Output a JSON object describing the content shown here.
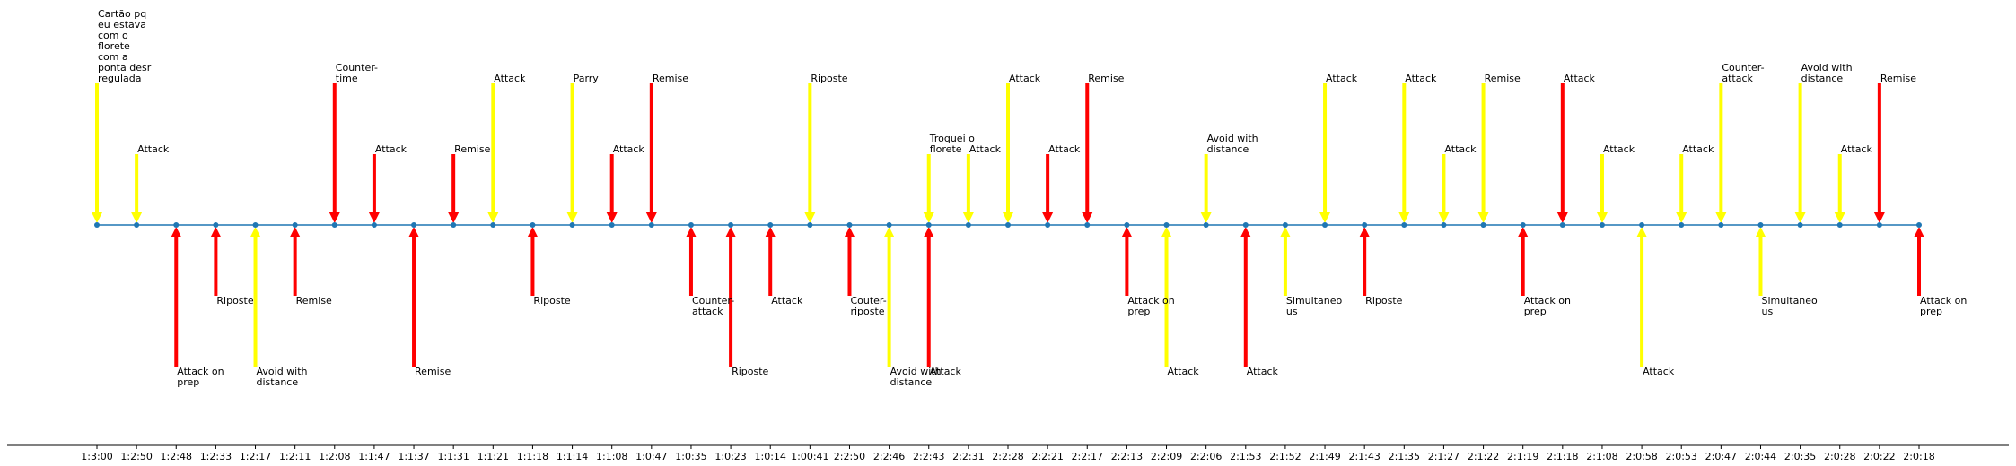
{
  "chart_data": {
    "type": "timeline",
    "title": "",
    "xlabel": "",
    "ylabel": "",
    "ylim": [
      -3,
      2.8
    ],
    "grid": false,
    "colors": {
      "timeline": "#1f77b4",
      "red": "#ff0000",
      "yellow": "#ffff00",
      "axis": "#000000"
    },
    "events": [
      {
        "time": "1:3:00",
        "color": "yellow",
        "level": 2.0,
        "label": [
          "Cartão pq",
          "eu estava",
          "com o",
          "florete",
          "com a",
          "ponta desr",
          "regulada"
        ]
      },
      {
        "time": "1:2:50",
        "color": "yellow",
        "level": 1.0,
        "label": [
          "Attack"
        ]
      },
      {
        "time": "1:2:48",
        "color": "red",
        "level": -2.0,
        "label": [
          "Attack on",
          "prep"
        ]
      },
      {
        "time": "1:2:33",
        "color": "red",
        "level": -1.0,
        "label": [
          "Riposte"
        ]
      },
      {
        "time": "1:2:17",
        "color": "yellow",
        "level": -2.0,
        "label": [
          "Avoid with",
          "distance"
        ]
      },
      {
        "time": "1:2:11",
        "color": "red",
        "level": -1.0,
        "label": [
          "Remise"
        ]
      },
      {
        "time": "1:2:08",
        "color": "red",
        "level": 2.0,
        "label": [
          "Counter-",
          "time"
        ]
      },
      {
        "time": "1:1:47",
        "color": "red",
        "level": 1.0,
        "label": [
          "Attack"
        ]
      },
      {
        "time": "1:1:37",
        "color": "red",
        "level": -2.0,
        "label": [
          "Remise"
        ]
      },
      {
        "time": "1:1:31",
        "color": "red",
        "level": 1.0,
        "label": [
          "Remise"
        ]
      },
      {
        "time": "1:1:21",
        "color": "yellow",
        "level": 2.0,
        "label": [
          "Attack"
        ]
      },
      {
        "time": "1:1:18",
        "color": "red",
        "level": -1.0,
        "label": [
          "Riposte"
        ]
      },
      {
        "time": "1:1:14",
        "color": "yellow",
        "level": 2.0,
        "label": [
          "Parry"
        ]
      },
      {
        "time": "1:1:08",
        "color": "red",
        "level": 1.0,
        "label": [
          "Attack"
        ]
      },
      {
        "time": "1:0:47",
        "color": "red",
        "level": 2.0,
        "label": [
          "Remise"
        ]
      },
      {
        "time": "1:0:35",
        "color": "red",
        "level": -1.0,
        "label": [
          "Counter-",
          "attack"
        ]
      },
      {
        "time": "1:0:23",
        "color": "red",
        "level": -2.0,
        "label": [
          "Riposte"
        ]
      },
      {
        "time": "1:0:14",
        "color": "red",
        "level": -1.0,
        "label": [
          "Attack"
        ]
      },
      {
        "time": "1:00:41",
        "color": "yellow",
        "level": 2.0,
        "label": [
          "Riposte"
        ]
      },
      {
        "time": "2:2:50",
        "color": "red",
        "level": -1.0,
        "label": [
          "Couter-",
          "riposte"
        ]
      },
      {
        "time": "2:2:46",
        "color": "yellow",
        "level": -2.0,
        "label": [
          "Avoid with",
          "distance"
        ]
      },
      {
        "time": "2:2:43",
        "color": "yellow",
        "level": 1.0,
        "label": [
          "Troquei o",
          "florete"
        ]
      },
      {
        "time": "2:2:43",
        "color": "red",
        "level": -2.0,
        "label": [
          "Attack"
        ]
      },
      {
        "time": "2:2:31",
        "color": "yellow",
        "level": 1.0,
        "label": [
          "Attack"
        ]
      },
      {
        "time": "2:2:28",
        "color": "yellow",
        "level": 2.0,
        "label": [
          "Attack"
        ]
      },
      {
        "time": "2:2:21",
        "color": "red",
        "level": 1.0,
        "label": [
          "Attack"
        ]
      },
      {
        "time": "2:2:17",
        "color": "red",
        "level": 2.0,
        "label": [
          "Remise"
        ]
      },
      {
        "time": "2:2:13",
        "color": "red",
        "level": -1.0,
        "label": [
          "Attack on",
          "prep"
        ]
      },
      {
        "time": "2:2:09",
        "color": "yellow",
        "level": -2.0,
        "label": [
          "Attack"
        ]
      },
      {
        "time": "2:2:06",
        "color": "yellow",
        "level": 1.0,
        "label": [
          "Avoid with",
          "distance"
        ]
      },
      {
        "time": "2:1:53",
        "color": "red",
        "level": -2.0,
        "label": [
          "Attack"
        ]
      },
      {
        "time": "2:1:52",
        "color": "yellow",
        "level": -1.0,
        "label": [
          "Simultaneo",
          "us"
        ]
      },
      {
        "time": "2:1:49",
        "color": "yellow",
        "level": 2.0,
        "label": [
          "Attack"
        ]
      },
      {
        "time": "2:1:43",
        "color": "red",
        "level": -1.0,
        "label": [
          "Riposte"
        ]
      },
      {
        "time": "2:1:35",
        "color": "yellow",
        "level": 2.0,
        "label": [
          "Attack"
        ]
      },
      {
        "time": "2:1:27",
        "color": "yellow",
        "level": 1.0,
        "label": [
          "Attack"
        ]
      },
      {
        "time": "2:1:22",
        "color": "yellow",
        "level": 2.0,
        "label": [
          "Remise"
        ]
      },
      {
        "time": "2:1:19",
        "color": "red",
        "level": -1.0,
        "label": [
          "Attack on",
          "prep"
        ]
      },
      {
        "time": "2:1:18",
        "color": "red",
        "level": 2.0,
        "label": [
          "Attack"
        ]
      },
      {
        "time": "2:1:08",
        "color": "yellow",
        "level": 1.0,
        "label": [
          "Attack"
        ]
      },
      {
        "time": "2:0:58",
        "color": "yellow",
        "level": -2.0,
        "label": [
          "Attack"
        ]
      },
      {
        "time": "2:0:53",
        "color": "yellow",
        "level": 1.0,
        "label": [
          "Attack"
        ]
      },
      {
        "time": "2:0:47",
        "color": "yellow",
        "level": 2.0,
        "label": [
          "Counter-",
          "attack"
        ]
      },
      {
        "time": "2:0:44",
        "color": "yellow",
        "level": -1.0,
        "label": [
          "Simultaneo",
          "us"
        ]
      },
      {
        "time": "2:0:35",
        "color": "yellow",
        "level": 2.0,
        "label": [
          "Avoid with",
          "distance"
        ]
      },
      {
        "time": "2:0:28",
        "color": "yellow",
        "level": 1.0,
        "label": [
          "Attack"
        ]
      },
      {
        "time": "2:0:22",
        "color": "red",
        "level": 2.0,
        "label": [
          "Remise"
        ]
      },
      {
        "time": "2:0:18",
        "color": "red",
        "level": -1.0,
        "label": [
          "Attack on",
          "prep"
        ]
      }
    ]
  }
}
